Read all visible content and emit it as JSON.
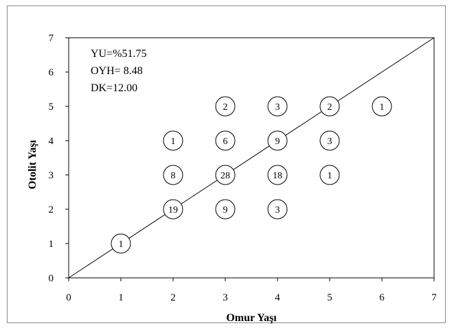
{
  "chart_data": {
    "type": "scatter",
    "xlabel": "Omur Yaşı",
    "ylabel": "Otolit Yaşı",
    "xlim": [
      0,
      7
    ],
    "ylim": [
      0,
      7
    ],
    "xticks": [
      "0",
      "1",
      "2",
      "3",
      "4",
      "5",
      "6",
      "7"
    ],
    "yticks": [
      "0",
      "1",
      "2",
      "3",
      "4",
      "5",
      "6",
      "7"
    ],
    "reference_line": {
      "from": [
        0,
        0
      ],
      "to": [
        7,
        7
      ]
    },
    "annotations": [
      "YU=%51.75",
      "OYH= 8.48",
      "DK=12.00"
    ],
    "points": [
      {
        "x": 1,
        "y": 1,
        "count": "1"
      },
      {
        "x": 2,
        "y": 2,
        "count": "19"
      },
      {
        "x": 2,
        "y": 3,
        "count": "8"
      },
      {
        "x": 2,
        "y": 4,
        "count": "1"
      },
      {
        "x": 3,
        "y": 2,
        "count": "9"
      },
      {
        "x": 3,
        "y": 3,
        "count": "28"
      },
      {
        "x": 3,
        "y": 4,
        "count": "6"
      },
      {
        "x": 3,
        "y": 5,
        "count": "2"
      },
      {
        "x": 4,
        "y": 2,
        "count": "3"
      },
      {
        "x": 4,
        "y": 3,
        "count": "18"
      },
      {
        "x": 4,
        "y": 4,
        "count": "9"
      },
      {
        "x": 4,
        "y": 5,
        "count": "3"
      },
      {
        "x": 5,
        "y": 3,
        "count": "1"
      },
      {
        "x": 5,
        "y": 4,
        "count": "3"
      },
      {
        "x": 5,
        "y": 5,
        "count": "2"
      },
      {
        "x": 6,
        "y": 5,
        "count": "1"
      }
    ],
    "grid": false,
    "colors": {
      "axis": "#000000",
      "marker_stroke": "#000000",
      "frame": "#8a8a8a"
    }
  }
}
